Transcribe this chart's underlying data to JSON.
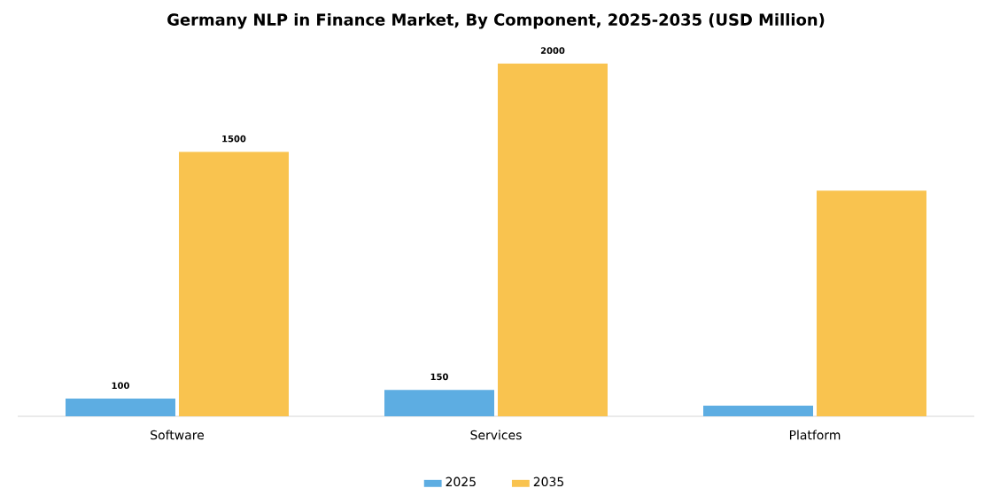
{
  "chart_data": {
    "type": "bar",
    "title": "Germany NLP in Finance Market, By Component, 2025-2035 (USD Million)",
    "categories": [
      "Software",
      "Services",
      "Platform"
    ],
    "series": [
      {
        "name": "2025",
        "color": "#5dade2",
        "values": [
          100,
          150,
          60
        ],
        "value_labels": [
          "100",
          "150",
          null
        ]
      },
      {
        "name": "2035",
        "color": "#f9c34f",
        "values": [
          1500,
          2000,
          1280
        ],
        "value_labels": [
          "1500",
          "2000",
          null
        ]
      }
    ],
    "legend": "bottom",
    "grid": false
  }
}
